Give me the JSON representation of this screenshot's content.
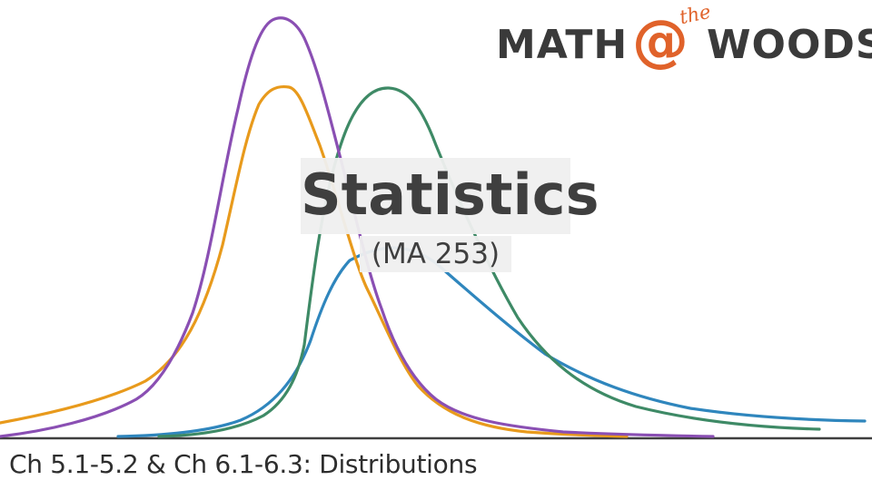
{
  "slide": {
    "title": "Statistics",
    "subtitle": "(MA 253)",
    "footer": "Ch 5.1-5.2 & Ch 6.1-6.3: Distributions"
  },
  "logo": {
    "word_left": "MATH",
    "at_symbol": "@",
    "small_word": "the",
    "word_right": "WOODS",
    "dark_color": "#3a3a3a",
    "accent_color": "#e0622a"
  },
  "colors": {
    "purple_curve": "#8a4fb3",
    "orange_curve": "#e89a1c",
    "green_curve": "#3e8a66",
    "blue_curve": "#2f86bd",
    "axis": "#3f3f3f"
  }
}
